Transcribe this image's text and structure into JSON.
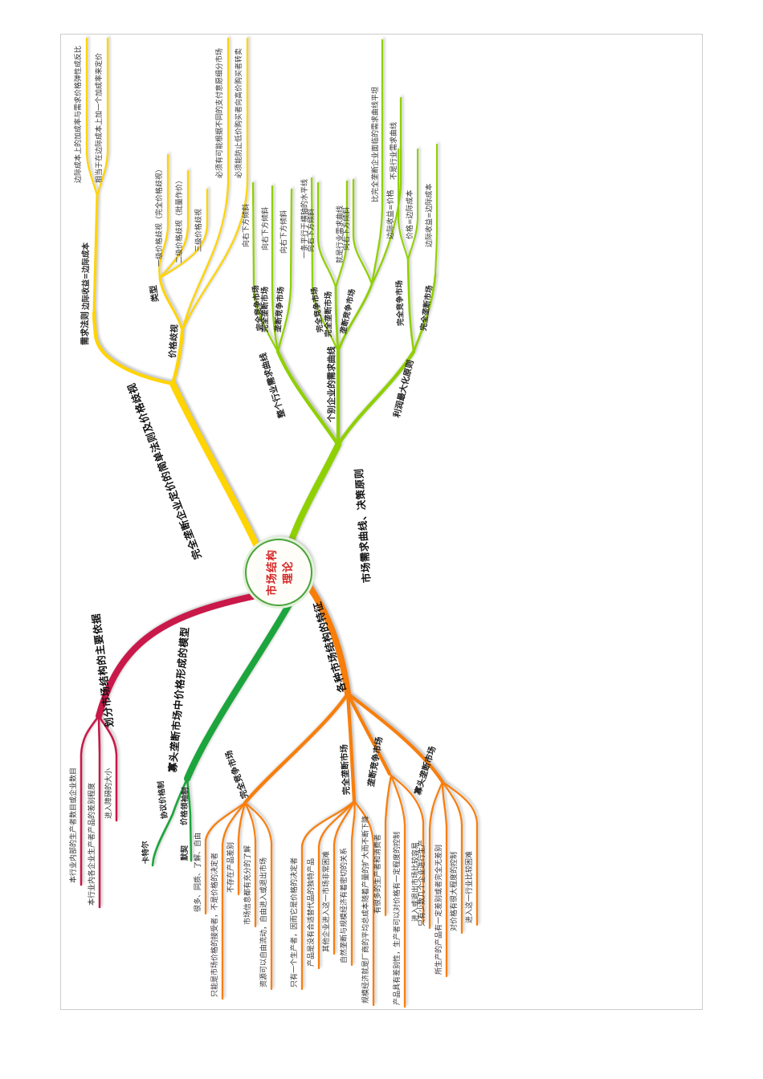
{
  "page": {
    "background": "#ffffff",
    "frame_border_color": "#cccccc"
  },
  "colors": {
    "yellow": "#FFD400",
    "lightgreen": "#8FD000",
    "red": "#C9184A",
    "green": "#1CA53C",
    "orange": "#F87E0B",
    "center_text": "#d42626",
    "center_ring": "#4aa33c"
  },
  "center": {
    "line1": "市场结构",
    "line2": "理论"
  },
  "nodes": {
    "y_main": "完全垄断企业定价的简单法则及价格歧视",
    "y_demand": "需求法则",
    "y_mrmc": "边际收益=边际成本",
    "y_mr_leaf1": "边际成本上的加成率与需求价格弹性成反比",
    "y_mr_leaf2": "相当于在边际成本上加一个加成率来定价",
    "y_pd": "价格歧视",
    "y_type": "类型",
    "y_t1": "一级价格歧视（完全价格歧视）",
    "y_t2": "二级价格歧视（批量作价）",
    "y_t3": "三级价格歧视",
    "y_c1": "必须有可能根据不同的支付意愿细分市场",
    "y_c2": "必须能防止低价购买者向高价购买者转卖",
    "g_main": "市场需求曲线、决策原则",
    "g_ind": "整个行业需求曲线",
    "g_ind_pc": "完全竞争市场",
    "g_ind_pc_l": "向右下方倾斜",
    "g_ind_pm": "完全垄断市场",
    "g_ind_pm_l": "向右下方倾斜",
    "g_ind_mc": "垄断竞争市场",
    "g_ind_mc_l": "向右下方倾斜",
    "g_firm": "个别企业的需求曲线",
    "g_firm_pc": "完全竞争市场",
    "g_firm_pc_l": "一条平行于横轴的水平线",
    "g_firm_pm": "完全垄断市场",
    "g_firm_pm_l1": "向右下方倾斜",
    "g_firm_pm_l2": "就是行业需求曲线",
    "g_firm_mc": "垄断竞争市场",
    "g_firm_mc_l1": "向右下方倾斜",
    "g_firm_mc_l2": "比完全垄断企业面临的需求曲线平坦",
    "g_firm_mc_l3": "不是行业需求曲线",
    "g_prof": "利润最大化原则",
    "g_prof_pc": "完全竞争市场",
    "g_prof_pc_l1": "边际收益=价格",
    "g_prof_pc_l2": "价格=边际成本",
    "g_prof_pm": "完全垄断市场",
    "g_prof_pm_l": "边际收益=边际成本",
    "r_main": "划分市场结构的主要依据",
    "r_l1": "本行业内部的生产者数目或企业数目",
    "r_l2": "本行业内各企业生产者产品的差别程度",
    "r_l3": "进入障碍的大小",
    "d_main": "寡头垄断市场中价格形成的模型",
    "d_agree": "协议价格制",
    "d_cartel": "卡特尔",
    "d_leader": "价格领袖制",
    "d_tacit": "默契",
    "o_main": "各种市场结构的特征",
    "o_pc": "完全竞争市场",
    "o_pc_l1": "很多、同质、了解、自由",
    "o_pc_l2": "只能是市场价格的接受者，不是价格的决定者",
    "o_pc_l3": "不存在产品差别",
    "o_pc_l4": "市场信息都有充分的了解",
    "o_pc_l5": "资源可以自由流动，自由进入或退出市场",
    "o_pm": "完全垄断市场",
    "o_pm_l1": "只有一个生产者，因而它是价格的决定者",
    "o_pm_l2": "产品是没有合适替代品的独特产品",
    "o_pm_l3": "其他企业进入这一市场非常困难",
    "o_pm_l4": "自然垄断与规模经济有着密切的关系",
    "o_pm_l5": "规模经济就是厂商的平均总成本随着产量的扩大而不断下降",
    "o_mc": "垄断竞争市场",
    "o_mc_l1": "有很多的生产者和消费者",
    "o_mc_l2": "产品具有差别性，生产者可以对价格有一定程度的控制",
    "o_mc_l3": "进入或退出市场比较容易",
    "o_ol": "寡头垄断市场",
    "o_ol_l1": "只有少数几个企业进行生产",
    "o_ol_l2": "所生产的产品有一定差别或者完全无差别",
    "o_ol_l3": "对价格有很大程度的控制",
    "o_ol_l4": "进入这一行业比较困难"
  },
  "tree": {
    "center": [
      "y_main",
      "g_main",
      "r_main",
      "d_main",
      "o_main"
    ],
    "y_main": {
      "y_demand": {
        "y_mrmc": [
          "y_mr_leaf1",
          "y_mr_leaf2"
        ]
      },
      "y_pd": {
        "y_type": [
          "y_t1",
          "y_t2",
          "y_t3"
        ],
        "leaves": [
          "y_c1",
          "y_c2"
        ]
      }
    },
    "g_main": {
      "g_ind": {
        "g_ind_pc": [
          "g_ind_pc_l"
        ],
        "g_ind_pm": [
          "g_ind_pm_l"
        ],
        "g_ind_mc": [
          "g_ind_mc_l"
        ]
      },
      "g_firm": {
        "g_firm_pc": [
          "g_firm_pc_l"
        ],
        "g_firm_pm": [
          "g_firm_pm_l1",
          "g_firm_pm_l2"
        ],
        "g_firm_mc": [
          "g_firm_mc_l1",
          "g_firm_mc_l2",
          "g_firm_mc_l3"
        ]
      },
      "g_prof": {
        "g_prof_pc": [
          "g_prof_pc_l1",
          "g_prof_pc_l2"
        ],
        "g_prof_pm": [
          "g_prof_pm_l"
        ]
      }
    },
    "r_main": [
      "r_l1",
      "r_l2",
      "r_l3"
    ],
    "d_main": {
      "d_agree": [
        "d_cartel"
      ],
      "d_leader": [
        "d_tacit"
      ]
    },
    "o_main": {
      "o_pc": [
        "o_pc_l1",
        "o_pc_l2",
        "o_pc_l3",
        "o_pc_l4",
        "o_pc_l5"
      ],
      "o_pm": [
        "o_pm_l1",
        "o_pm_l2",
        "o_pm_l3",
        "o_pm_l4",
        "o_pm_l5"
      ],
      "o_mc": [
        "o_mc_l1",
        "o_mc_l2",
        "o_mc_l3"
      ],
      "o_ol": [
        "o_ol_l1",
        "o_ol_l2",
        "o_ol_l3",
        "o_ol_l4"
      ]
    }
  }
}
